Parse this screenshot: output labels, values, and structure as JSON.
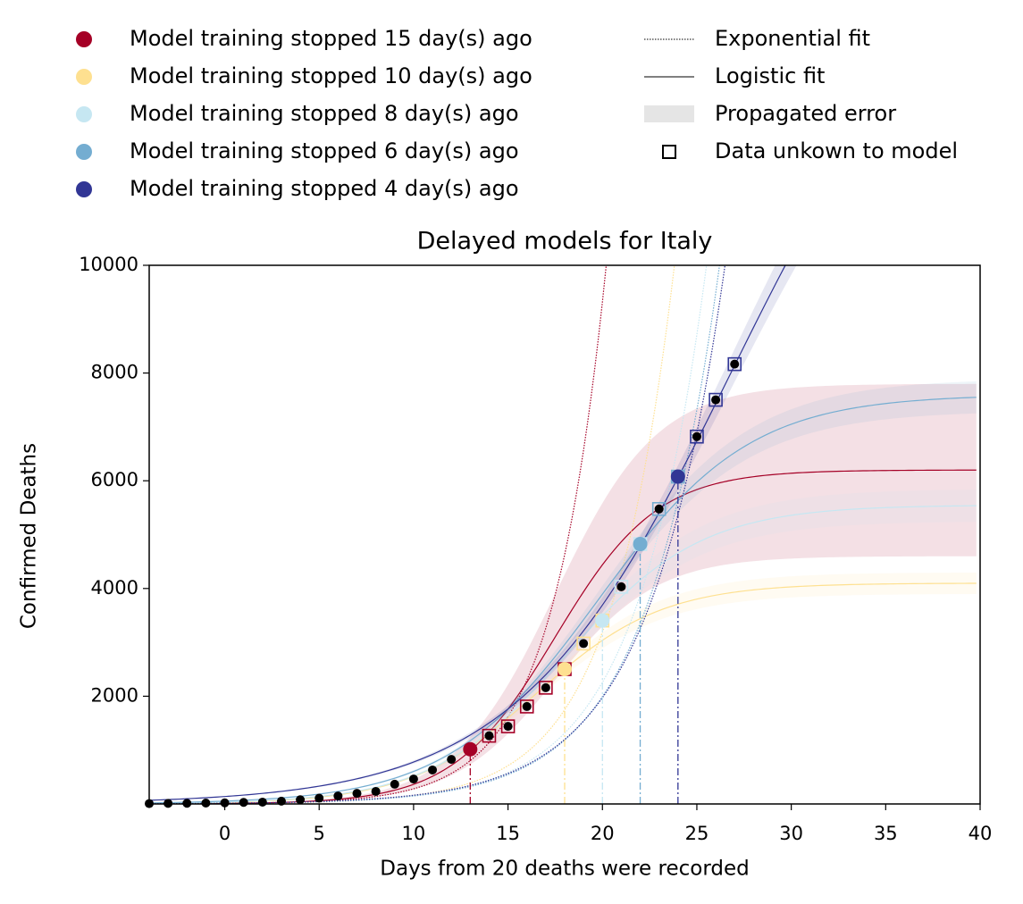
{
  "chart_data": {
    "type": "line",
    "title": "Delayed models for Italy",
    "x_label": "Days from 20 deaths were recorded",
    "y_label": "Confirmed Deaths",
    "xlim": [
      -4,
      40
    ],
    "ylim": [
      0,
      10000
    ],
    "xticks": [
      0,
      5,
      10,
      15,
      20,
      25,
      30,
      35,
      40
    ],
    "yticks": [
      2000,
      4000,
      6000,
      8000,
      10000
    ],
    "x": [
      -4,
      -3,
      -2,
      -1,
      0,
      1,
      2,
      3,
      4,
      5,
      6,
      7,
      8,
      9,
      10,
      11,
      12,
      13,
      14,
      15,
      16,
      17,
      18,
      19,
      20,
      21,
      22,
      23,
      24,
      25,
      26,
      27
    ],
    "values": [
      7,
      10,
      12,
      17,
      21,
      29,
      34,
      52,
      79,
      107,
      148,
      197,
      233,
      366,
      463,
      631,
      827,
      1016,
      1266,
      1441,
      1809,
      2158,
      2503,
      2978,
      3405,
      4032,
      4825,
      5476,
      6077,
      6820,
      7503,
      8165
    ],
    "data_color": "#000000",
    "models": [
      {
        "name": "Model training stopped 15 day(s) ago",
        "color": "#a50026",
        "stop_day": 13,
        "logistic": {
          "plateau": 6200,
          "midpoint": 17.5,
          "rate": 0.37,
          "plateau_error": 1600
        },
        "exponential": {
          "scale": 8.5,
          "rate": 0.35
        }
      },
      {
        "name": "Model training stopped 10 day(s) ago",
        "color": "#fee090",
        "stop_day": 18,
        "logistic": {
          "plateau": 4100,
          "midpoint": 16.5,
          "rate": 0.3,
          "plateau_error": 200
        },
        "exponential": {
          "scale": 7.9,
          "rate": 0.3
        }
      },
      {
        "name": "Model training stopped 8 day(s) ago",
        "color": "#c6e7f2",
        "stop_day": 20,
        "logistic": {
          "plateau": 5550,
          "midpoint": 18.1,
          "rate": 0.28,
          "plateau_error": 300
        },
        "exponential": {
          "scale": 10.2,
          "rate": 0.27
        }
      },
      {
        "name": "Model training stopped 6 day(s) ago",
        "color": "#74add1",
        "stop_day": 22,
        "logistic": {
          "plateau": 7600,
          "midpoint": 19.8,
          "rate": 0.25,
          "plateau_error": 300
        },
        "exponential": {
          "scale": 11.0,
          "rate": 0.26
        }
      },
      {
        "name": "Model training stopped 4 day(s) ago",
        "color": "#313695",
        "stop_day": 24,
        "logistic": {
          "plateau": 16000,
          "midpoint": 26.8,
          "rate": 0.177,
          "plateau_error": 600
        },
        "exponential": {
          "scale": 13.3,
          "rate": 0.25
        }
      }
    ],
    "legend_labels": {
      "exponential": "Exponential fit",
      "logistic": "Logistic fit",
      "error": "Propagated error",
      "unknown": "Data unkown to model"
    }
  }
}
